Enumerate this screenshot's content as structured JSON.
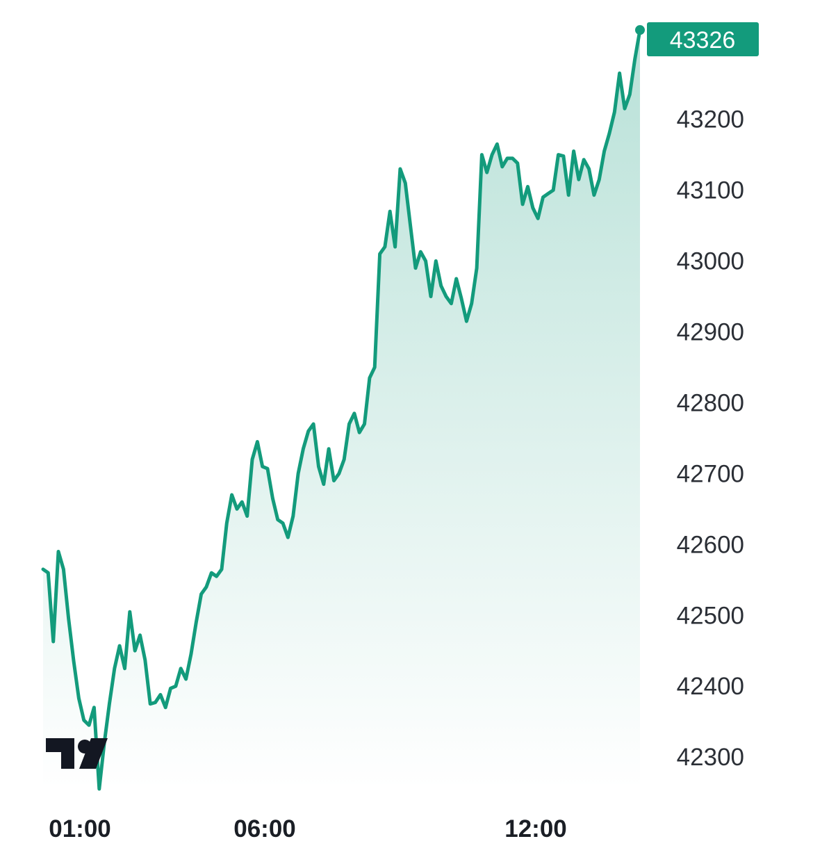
{
  "chart_data": {
    "type": "area",
    "title": "",
    "xlabel": "",
    "ylabel": "",
    "x_ticks": [
      "01:00",
      "06:00",
      "12:00"
    ],
    "y_ticks": [
      42300,
      42400,
      42500,
      42600,
      42700,
      42800,
      42900,
      43000,
      43100,
      43200
    ],
    "ylim": [
      42235,
      43355
    ],
    "xlim": [
      0,
      860
    ],
    "grid": false,
    "last_value": "43326",
    "line_color": "#139b7c",
    "label_bg": "#139b7c",
    "series": [
      {
        "values": [
          42565,
          42560,
          42463,
          42590,
          42565,
          42495,
          42435,
          42383,
          42352,
          42345,
          42370,
          42255,
          42320,
          42375,
          42425,
          42457,
          42425,
          42505,
          42450,
          42472,
          42437,
          42375,
          42377,
          42388,
          42370,
          42397,
          42400,
          42425,
          42410,
          42445,
          42490,
          42530,
          42540,
          42560,
          42555,
          42565,
          42630,
          42670,
          42650,
          42660,
          42640,
          42720,
          42745,
          42710,
          42707,
          42665,
          42635,
          42630,
          42610,
          42640,
          42700,
          42735,
          42760,
          42770,
          42710,
          42685,
          42735,
          42690,
          42700,
          42720,
          42770,
          42785,
          42758,
          42770,
          42835,
          42850,
          43010,
          43020,
          43070,
          43020,
          43130,
          43110,
          43050,
          42990,
          43013,
          43000,
          42950,
          43000,
          42965,
          42950,
          42940,
          42975,
          42947,
          42915,
          42940,
          42990,
          43150,
          43125,
          43150,
          43165,
          43133,
          43145,
          43145,
          43138,
          43080,
          43105,
          43075,
          43060,
          43090,
          43095,
          43100,
          43150,
          43148,
          43093,
          43155,
          43115,
          43143,
          43130,
          43093,
          43115,
          43155,
          43180,
          43210,
          43265,
          43215,
          43235,
          43285,
          43326
        ]
      }
    ]
  }
}
